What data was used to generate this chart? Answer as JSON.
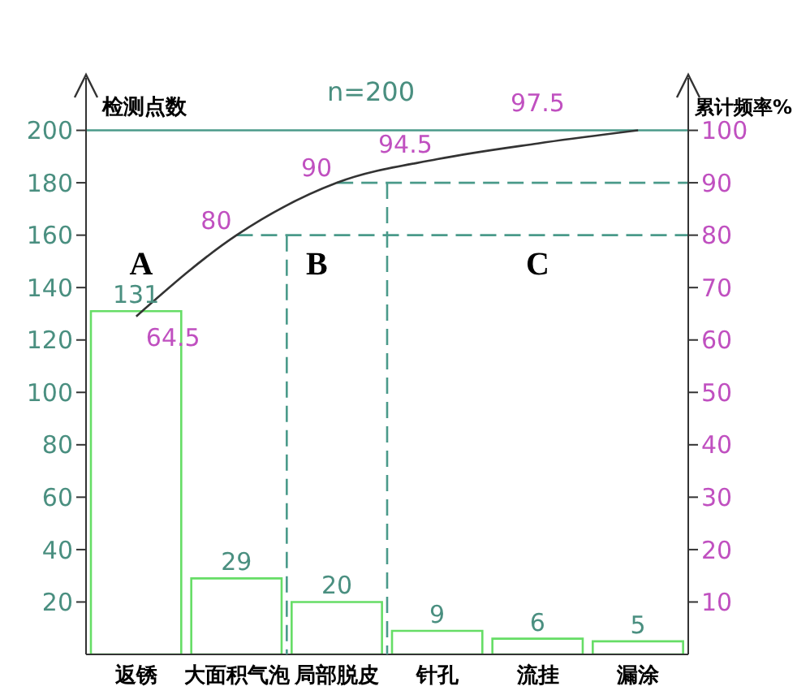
{
  "chart_data": {
    "type": "bar",
    "title": "n=200",
    "ylabel": "检测点数",
    "y2label": "累计频率%",
    "categories": [
      "返锈",
      "大面积气泡",
      "局部脱皮",
      "针孔",
      "流挂",
      "漏涂"
    ],
    "series": [
      {
        "color": "#66dd66",
        "values": [
          131,
          29,
          20,
          9,
          6,
          5
        ]
      },
      {
        "type": "line",
        "axis": "y2",
        "color": "#333333",
        "values": [
          64.5,
          80,
          90,
          94.5,
          97.5,
          100
        ],
        "value_labels": [
          "64.5",
          "80",
          "90",
          "94.5",
          "97.5",
          null
        ]
      }
    ],
    "data_labels": true,
    "ylim": [
      0,
      220
    ],
    "yticks": [
      20,
      40,
      60,
      80,
      100,
      120,
      140,
      160,
      180,
      200
    ],
    "y2lim": [
      0,
      110
    ],
    "y2ticks": [
      10,
      20,
      30,
      40,
      50,
      60,
      70,
      80,
      90,
      100
    ],
    "ref_lines": [
      {
        "axis": "y",
        "value": 200,
        "color": "#4a9a8a"
      },
      {
        "axis": "y2",
        "value": 80,
        "color": "#4a9a8a",
        "line_style": "dashed"
      },
      {
        "axis": "y2",
        "value": 90,
        "color": "#4a9a8a",
        "line_style": "dashed"
      }
    ],
    "annotations": [
      "A",
      "B",
      "C"
    ],
    "grid": false,
    "legend": false,
    "marker": "none"
  }
}
